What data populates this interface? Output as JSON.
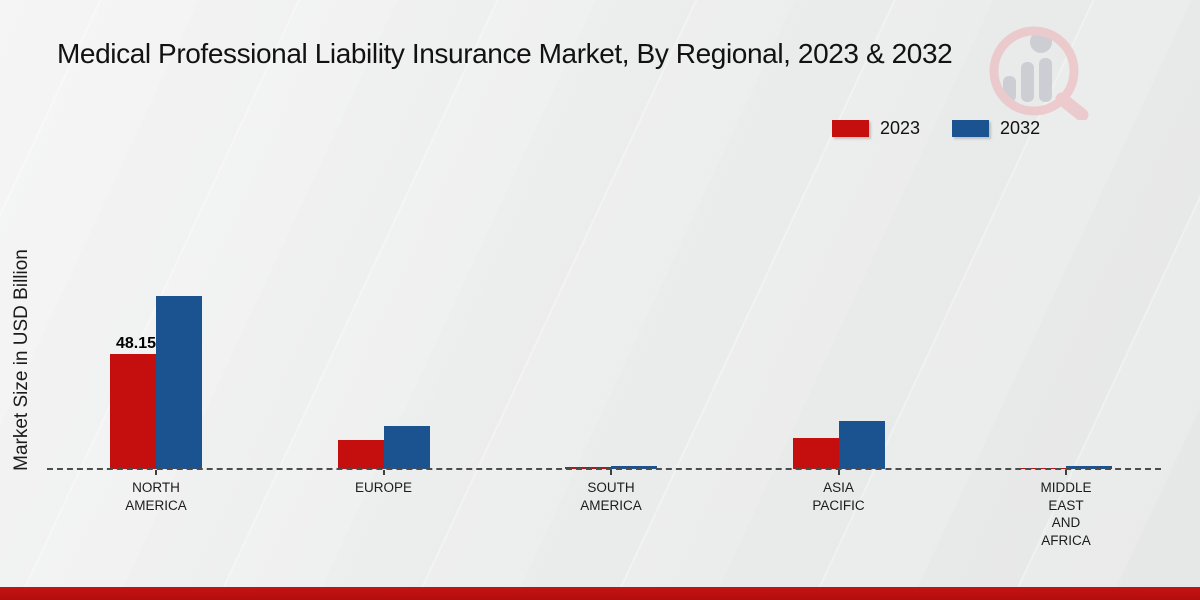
{
  "icons": {
    "watermark": "magnifier-bar-chart-logo"
  },
  "footer": {
    "accent_color": "#b30d0d"
  },
  "chart_data": {
    "type": "bar",
    "title": "Medical Professional Liability Insurance Market, By Regional, 2023 & 2032",
    "ylabel": "Market Size in USD Billion",
    "xlabel": "",
    "categories": [
      "NORTH AMERICA",
      "EUROPE",
      "SOUTH AMERICA",
      "ASIA PACIFIC",
      "MIDDLE EAST AND AFRICA"
    ],
    "category_label_lines": [
      [
        "NORTH",
        "AMERICA"
      ],
      [
        "EUROPE"
      ],
      [
        "SOUTH",
        "AMERICA"
      ],
      [
        "ASIA",
        "PACIFIC"
      ],
      [
        "MIDDLE",
        "EAST",
        "AND",
        "AFRICA"
      ]
    ],
    "series": [
      {
        "name": "2023",
        "color": "#c50f0f",
        "values": [
          48.15,
          12.0,
          0.9,
          13.0,
          0.6
        ]
      },
      {
        "name": "2032",
        "color": "#1a538f",
        "values": [
          72.4,
          18.0,
          1.3,
          20.0,
          1.3
        ]
      }
    ],
    "data_labels": [
      {
        "series_index": 0,
        "category_index": 0,
        "text": "48.15"
      }
    ],
    "baseline_value": 0,
    "ylim": [
      0,
      75
    ],
    "grid": false,
    "zero_line": "dashed",
    "legend_position": "top-right"
  }
}
